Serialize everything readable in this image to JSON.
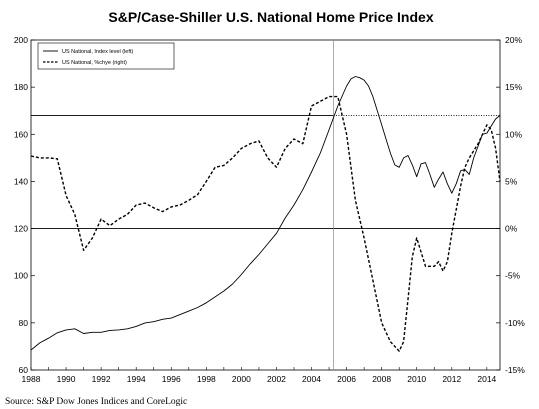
{
  "chart_data": {
    "type": "line",
    "title": "S&P/Case-Shiller U.S. National Home Price Index",
    "source": "Source: S&P Dow Jones Indices and CoreLogic",
    "xlim": [
      1988,
      2014.75
    ],
    "ylim": [
      60,
      200
    ],
    "y2lim": [
      -15,
      20
    ],
    "x_ticks": [
      "1988",
      "1990",
      "1992",
      "1994",
      "1996",
      "1998",
      "2000",
      "2002",
      "2004",
      "2006",
      "2008",
      "2010",
      "2012",
      "2014"
    ],
    "y_ticks": [
      "60",
      "80",
      "100",
      "120",
      "140",
      "160",
      "180",
      "200"
    ],
    "y2_ticks": [
      "-15%",
      "-10%",
      "-5%",
      "0%",
      "5%",
      "10%",
      "15%",
      "20%"
    ],
    "reference_lines": {
      "left_value": 120,
      "right_value": 12,
      "vertical_x": 2005.25
    },
    "legend_placement": "top-left",
    "series": [
      {
        "name": "US National, Index level (left)",
        "axis": "left",
        "style": "solid",
        "x": [
          1988.0,
          1988.5,
          1989.0,
          1989.5,
          1990.0,
          1990.5,
          1991.0,
          1991.5,
          1992.0,
          1992.5,
          1993.0,
          1993.5,
          1994.0,
          1994.5,
          1995.0,
          1995.5,
          1996.0,
          1996.5,
          1997.0,
          1997.5,
          1998.0,
          1998.5,
          1999.0,
          1999.5,
          2000.0,
          2000.5,
          2001.0,
          2001.5,
          2002.0,
          2002.5,
          2003.0,
          2003.5,
          2004.0,
          2004.5,
          2005.0,
          2005.5,
          2006.0,
          2006.25,
          2006.5,
          2006.75,
          2007.0,
          2007.25,
          2007.5,
          2007.75,
          2008.0,
          2008.25,
          2008.5,
          2008.75,
          2009.0,
          2009.25,
          2009.5,
          2009.75,
          2010.0,
          2010.25,
          2010.5,
          2010.75,
          2011.0,
          2011.25,
          2011.5,
          2011.75,
          2012.0,
          2012.25,
          2012.5,
          2012.75,
          2013.0,
          2013.25,
          2013.5,
          2013.75,
          2014.0,
          2014.25,
          2014.5,
          2014.75
        ],
        "values": [
          68.5,
          71.5,
          73.5,
          75.8,
          77.0,
          77.5,
          75.5,
          76.0,
          76.0,
          76.8,
          77.0,
          77.5,
          78.5,
          80.0,
          80.5,
          81.5,
          82.0,
          83.5,
          85.0,
          86.5,
          88.5,
          91.0,
          93.5,
          96.5,
          100.5,
          105.0,
          109.0,
          113.5,
          118.0,
          124.5,
          130.0,
          136.5,
          144.0,
          152.0,
          162.0,
          172.0,
          180.5,
          183.5,
          184.5,
          184.0,
          183.0,
          180.5,
          176.0,
          170.0,
          164.0,
          158.0,
          152.0,
          147.0,
          146.0,
          150.0,
          151.0,
          147.0,
          142.0,
          147.5,
          148.0,
          143.0,
          137.5,
          141.0,
          144.0,
          139.0,
          135.0,
          139.0,
          144.5,
          145.0,
          143.0,
          150.0,
          155.0,
          160.0,
          160.5,
          163.5,
          166.5,
          168.0
        ]
      },
      {
        "name": "US National, %chye (right)",
        "axis": "right",
        "style": "dashed",
        "x": [
          1988.0,
          1988.5,
          1989.0,
          1989.5,
          1990.0,
          1990.5,
          1991.0,
          1991.5,
          1992.0,
          1992.5,
          1993.0,
          1993.5,
          1994.0,
          1994.5,
          1995.0,
          1995.5,
          1996.0,
          1996.5,
          1997.0,
          1997.5,
          1998.0,
          1998.5,
          1999.0,
          1999.5,
          2000.0,
          2000.5,
          2001.0,
          2001.5,
          2002.0,
          2002.5,
          2003.0,
          2003.5,
          2004.0,
          2004.5,
          2005.0,
          2005.5,
          2006.0,
          2006.5,
          2007.0,
          2007.5,
          2008.0,
          2008.5,
          2009.0,
          2009.25,
          2009.5,
          2009.75,
          2010.0,
          2010.25,
          2010.5,
          2010.75,
          2011.0,
          2011.25,
          2011.5,
          2011.75,
          2012.0,
          2012.25,
          2012.5,
          2012.75,
          2013.0,
          2013.5,
          2014.0,
          2014.25,
          2014.5,
          2014.75
        ],
        "values": [
          7.7,
          7.5,
          7.5,
          7.4,
          3.5,
          1.5,
          -2.3,
          -1.0,
          1.0,
          0.3,
          1.0,
          1.5,
          2.5,
          2.7,
          2.2,
          1.8,
          2.3,
          2.5,
          3.0,
          3.6,
          5.0,
          6.5,
          6.7,
          7.5,
          8.5,
          9.0,
          9.3,
          7.5,
          6.5,
          8.5,
          9.5,
          9.0,
          13.0,
          13.5,
          14.0,
          14.0,
          10.0,
          3.0,
          -1.0,
          -5.5,
          -10.0,
          -12.0,
          -13.0,
          -12.0,
          -7.5,
          -3.0,
          -1.0,
          -2.5,
          -4.0,
          -4.0,
          -4.0,
          -3.5,
          -4.5,
          -3.5,
          -0.5,
          2.0,
          4.5,
          6.5,
          7.5,
          9.0,
          11.0,
          10.5,
          8.5,
          5.0
        ]
      }
    ]
  }
}
